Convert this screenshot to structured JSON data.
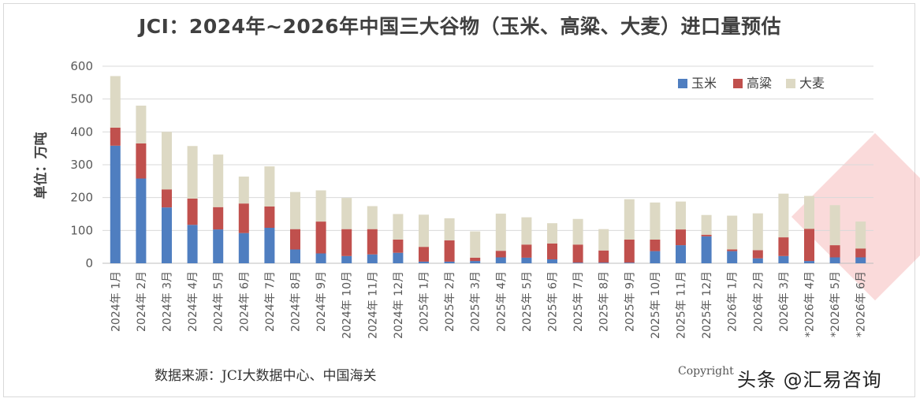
{
  "chart_data": {
    "type": "bar",
    "stacked": true,
    "title": "JCI：2024年~2026年中国三大谷物（玉米、高粱、大麦）进口量预估",
    "ylabel": "单位：万吨",
    "ylim": [
      0,
      600
    ],
    "yticks": [
      0,
      100,
      200,
      300,
      400,
      500,
      600
    ],
    "grid": true,
    "legend_position": "top-right",
    "categories": [
      "2024年 1月",
      "2024年 2月",
      "2024年 3月",
      "2024年 4月",
      "2024年 5月",
      "2024年 6月",
      "2024年 7月",
      "2024年 8月",
      "2024年 9月",
      "2024年 10月",
      "2024年 11月",
      "2024年 12月",
      "2025年 1月",
      "2025年 2月",
      "2025年 3月",
      "2025年 4月",
      "2025年 5月",
      "2025年 6月",
      "2025年 7月",
      "2025年 8月",
      "2025年 9月",
      "2025年 10月",
      "2025年 11月",
      "2025年 12月",
      "2026年 1月",
      "2026年 2月",
      "2026年 3月",
      "*2026年 4月",
      "*2026年 5月",
      "*2026年 6月"
    ],
    "series": [
      {
        "name": "玉米",
        "color": "#4f7ec0",
        "values": [
          358,
          258,
          170,
          117,
          103,
          92,
          108,
          42,
          30,
          22,
          27,
          32,
          5,
          5,
          7,
          18,
          17,
          12,
          2,
          2,
          2,
          37,
          55,
          82,
          37,
          15,
          22,
          7,
          18,
          18
        ]
      },
      {
        "name": "高粱",
        "color": "#c0504d",
        "values": [
          55,
          107,
          55,
          80,
          68,
          90,
          65,
          62,
          97,
          82,
          77,
          40,
          45,
          65,
          10,
          20,
          40,
          48,
          55,
          37,
          70,
          35,
          48,
          5,
          5,
          25,
          57,
          98,
          37,
          27
        ]
      },
      {
        "name": "大麦",
        "color": "#ddd9c4",
        "values": [
          157,
          115,
          175,
          160,
          160,
          82,
          122,
          113,
          95,
          95,
          70,
          78,
          98,
          67,
          80,
          113,
          83,
          62,
          78,
          65,
          123,
          113,
          85,
          60,
          103,
          112,
          133,
          100,
          122,
          82
        ]
      }
    ]
  },
  "source_note": "数据来源：JCI大数据中心、中国海关",
  "copyright": "Copyright",
  "watermark": "头条 @汇易咨询"
}
